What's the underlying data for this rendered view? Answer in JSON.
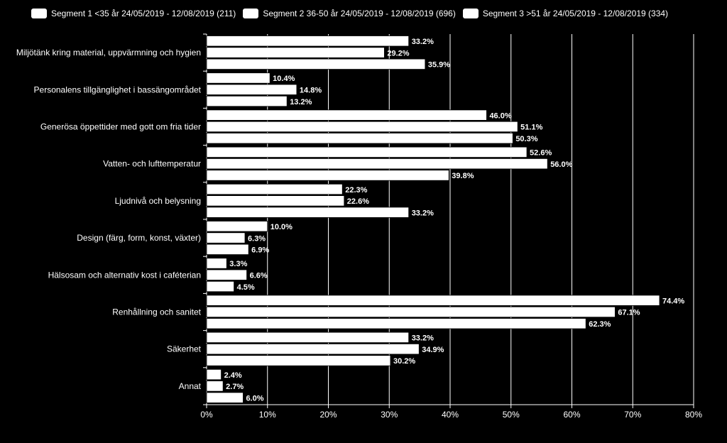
{
  "colors": {
    "background": "#000000",
    "bar": "#ffffff",
    "text": "#ffffff",
    "grid": "#ffffff"
  },
  "chart_data": {
    "type": "bar",
    "orientation": "horizontal",
    "legend_position": "top",
    "grid": true,
    "xlim": [
      0,
      80
    ],
    "x_ticks": [
      "0%",
      "10%",
      "20%",
      "30%",
      "40%",
      "50%",
      "60%",
      "70%",
      "80%"
    ],
    "categories": [
      "Miljötänk kring material, uppvärmning och hygien",
      "Personalens tillgänglighet i bassängområdet",
      "Generösa öppettider med gott om fria tider",
      "Vatten- och lufttemperatur",
      "Ljudnivå och belysning",
      "Design (färg, form, konst, växter)",
      "Hälsosam och alternativ kost i caféterian",
      "Renhållning och sanitet",
      "Säkerhet",
      "Annat"
    ],
    "series": [
      {
        "name": "Segment 1 <35 år 24/05/2019 - 12/08/2019 (211)",
        "values": [
          33.2,
          10.4,
          46.0,
          52.6,
          22.3,
          10.0,
          3.3,
          74.4,
          33.2,
          2.4
        ],
        "labels": [
          "33.2%",
          "10.4%",
          "46.0%",
          "52.6%",
          "22.3%",
          "10.0%",
          "3.3%",
          "74.4%",
          "33.2%",
          "2.4%"
        ]
      },
      {
        "name": "Segment 2 36-50 år 24/05/2019 - 12/08/2019 (696)",
        "values": [
          29.2,
          14.8,
          51.1,
          56.0,
          22.6,
          6.3,
          6.6,
          67.1,
          34.9,
          2.7
        ],
        "labels": [
          "29.2%",
          "14.8%",
          "51.1%",
          "56.0%",
          "22.6%",
          "6.3%",
          "6.6%",
          "67.1%",
          "34.9%",
          "2.7%"
        ]
      },
      {
        "name": "Segment 3 >51 år 24/05/2019 - 12/08/2019 (334)",
        "values": [
          35.9,
          13.2,
          50.3,
          39.8,
          33.2,
          6.9,
          4.5,
          62.3,
          30.2,
          6.0
        ],
        "labels": [
          "35.9%",
          "13.2%",
          "50.3%",
          "39.8%",
          "33.2%",
          "6.9%",
          "4.5%",
          "62.3%",
          "30.2%",
          "6.0%"
        ]
      }
    ]
  }
}
